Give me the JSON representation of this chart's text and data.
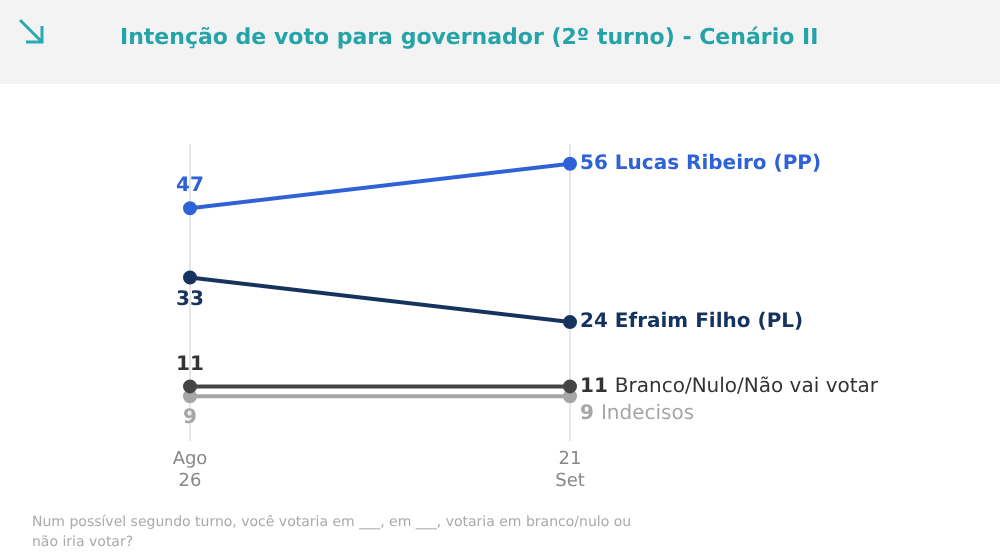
{
  "chart_data": {
    "type": "line",
    "title": "Intenção de voto para governador (2º turno) - Cenário II",
    "categories": [
      "Ago 26",
      "21 Set"
    ],
    "series": [
      {
        "name": "Lucas Ribeiro (PP)",
        "color": "#2f62d6",
        "values": [
          47,
          56
        ]
      },
      {
        "name": "Efraim Filho (PL)",
        "color": "#16325f",
        "values": [
          33,
          24
        ]
      },
      {
        "name": "Branco/Nulo/Não vai votar",
        "color": "#444444",
        "values": [
          11,
          11
        ]
      },
      {
        "name": "Indecisos",
        "color": "#a6a6a6",
        "values": [
          9,
          9
        ]
      }
    ],
    "data_labels": true,
    "grid": "x",
    "legend": false,
    "marker": "circle",
    "line_style": "solid",
    "annotations": [
      "Num possível segundo turno, você votaria em ___, em ___, votaria em branco/nulo ou não iria votar?"
    ]
  }
}
